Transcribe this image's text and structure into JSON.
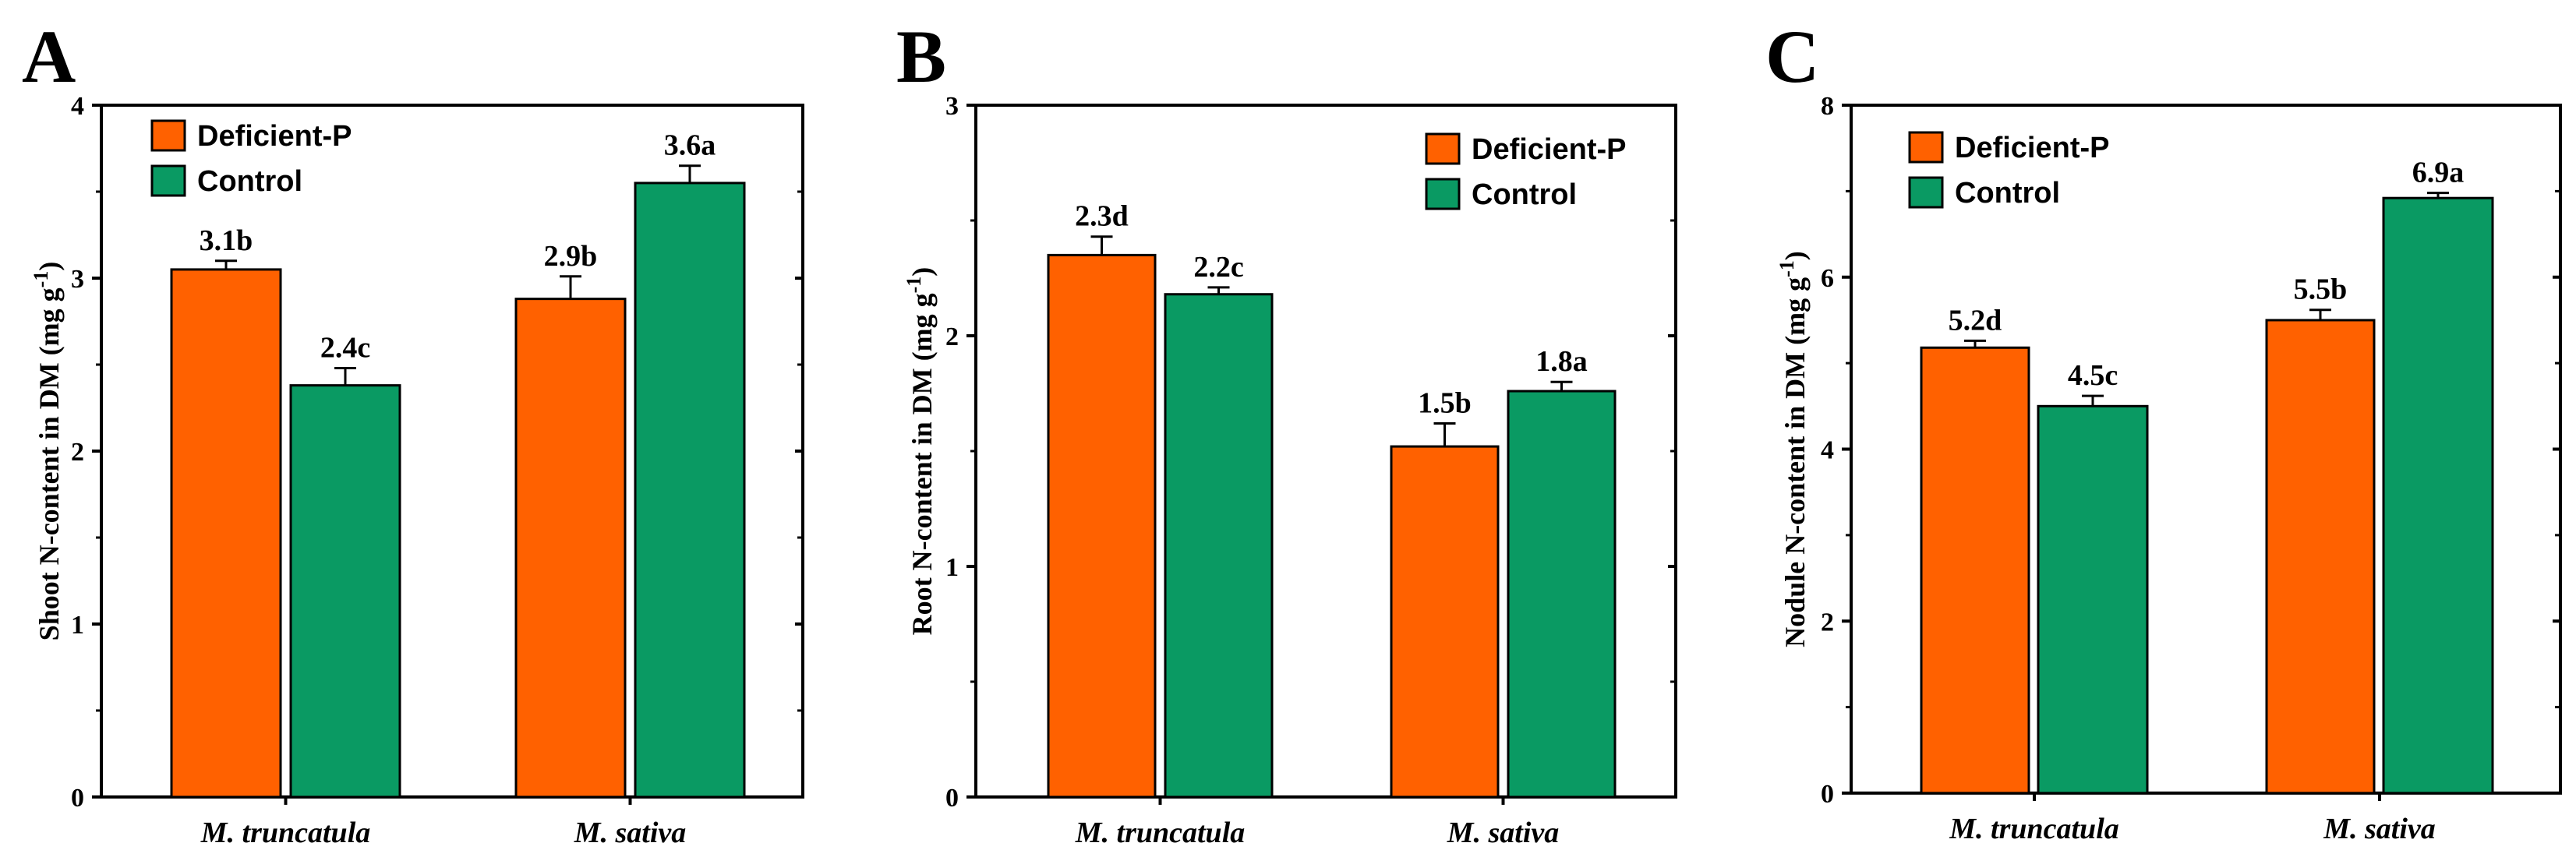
{
  "series_names": [
    "Deficient-P",
    "Control"
  ],
  "colors": {
    "Deficient-P": "#ff6100",
    "Control": "#0a9a63",
    "axis": "#000000"
  },
  "chart_data": [
    {
      "panel": "A",
      "type": "bar",
      "categories": [
        "M. truncatula",
        "M. sativa"
      ],
      "series": [
        {
          "name": "Deficient-P",
          "values": [
            3.05,
            2.88
          ],
          "errors": [
            0.05,
            0.13
          ],
          "labels": [
            "3.1b",
            "2.9b"
          ]
        },
        {
          "name": "Control",
          "values": [
            2.38,
            3.55
          ],
          "errors": [
            0.1,
            0.1
          ],
          "labels": [
            "2.4c",
            "3.6a"
          ]
        }
      ],
      "ylabel": "Shoot N-content in DM (mg g",
      "ylabel_sup": "-1",
      "ylabel_tail": ")",
      "ylim": [
        0,
        4
      ],
      "yticks": [
        0,
        1,
        2,
        3,
        4
      ],
      "legend": "top-left"
    },
    {
      "panel": "B",
      "type": "bar",
      "categories": [
        "M. truncatula",
        "M. sativa"
      ],
      "series": [
        {
          "name": "Deficient-P",
          "values": [
            2.35,
            1.52
          ],
          "errors": [
            0.08,
            0.1
          ],
          "labels": [
            "2.3d",
            "1.5b"
          ]
        },
        {
          "name": "Control",
          "values": [
            2.18,
            1.76
          ],
          "errors": [
            0.03,
            0.04
          ],
          "labels": [
            "2.2c",
            "1.8a"
          ]
        }
      ],
      "ylabel": "Root N-content in DM (mg g",
      "ylabel_sup": "-1",
      "ylabel_tail": ")",
      "ylim": [
        0,
        3
      ],
      "yticks": [
        0,
        1,
        2,
        3
      ],
      "legend": "top-right"
    },
    {
      "panel": "C",
      "type": "bar",
      "categories": [
        "M. truncatula",
        "M. sativa"
      ],
      "series": [
        {
          "name": "Deficient-P",
          "values": [
            5.18,
            5.5
          ],
          "errors": [
            0.08,
            0.12
          ],
          "labels": [
            "5.2d",
            "5.5b"
          ]
        },
        {
          "name": "Control",
          "values": [
            4.5,
            6.92
          ],
          "errors": [
            0.12,
            0.06
          ],
          "labels": [
            "4.5c",
            "6.9a"
          ]
        }
      ],
      "ylabel": "Nodule N-content in DM (mg g",
      "ylabel_sup": "-1",
      "ylabel_tail": ")",
      "ylim": [
        0,
        8
      ],
      "yticks": [
        0,
        2,
        4,
        6,
        8
      ],
      "legend": "top-left"
    }
  ]
}
